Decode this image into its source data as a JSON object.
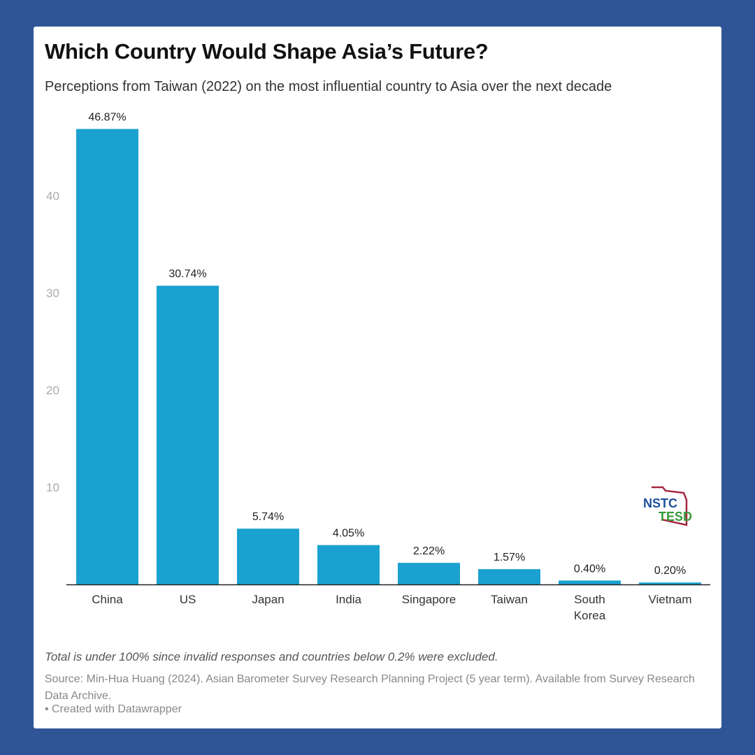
{
  "title": "Which Country Would Shape Asia’s Future?",
  "subtitle": "Perceptions from Taiwan (2022) on the most influential country to Asia over the next decade",
  "note": "Total is under 100% since invalid responses and countries below 0.2% were excluded.",
  "source": "Source: Min-Hua Huang (2024). Asian Barometer Survey Research Planning Project (5 year term). Available from Survey Research Data Archive.",
  "credit": "• Created with Datawrapper",
  "logo": {
    "line1": "NSTC",
    "line2": "TESD"
  },
  "colors": {
    "background": "#2f5597",
    "bar": "#1aa1cf"
  },
  "chart_data": {
    "type": "bar",
    "categories": [
      "China",
      "US",
      "Japan",
      "India",
      "Singapore",
      "Taiwan",
      "South Korea",
      "Vietnam"
    ],
    "category_lines": [
      [
        "China"
      ],
      [
        "US"
      ],
      [
        "Japan"
      ],
      [
        "India"
      ],
      [
        "Singapore"
      ],
      [
        "Taiwan"
      ],
      [
        "South",
        "Korea"
      ],
      [
        "Vietnam"
      ]
    ],
    "values": [
      46.87,
      30.74,
      5.74,
      4.05,
      2.22,
      1.57,
      0.4,
      0.2
    ],
    "data_labels": [
      "46.87%",
      "30.74%",
      "5.74%",
      "4.05%",
      "2.22%",
      "1.57%",
      "0.40%",
      "0.20%"
    ],
    "yticks": [
      10,
      20,
      30,
      40
    ],
    "ylim": [
      0,
      50
    ],
    "grid": false
  }
}
